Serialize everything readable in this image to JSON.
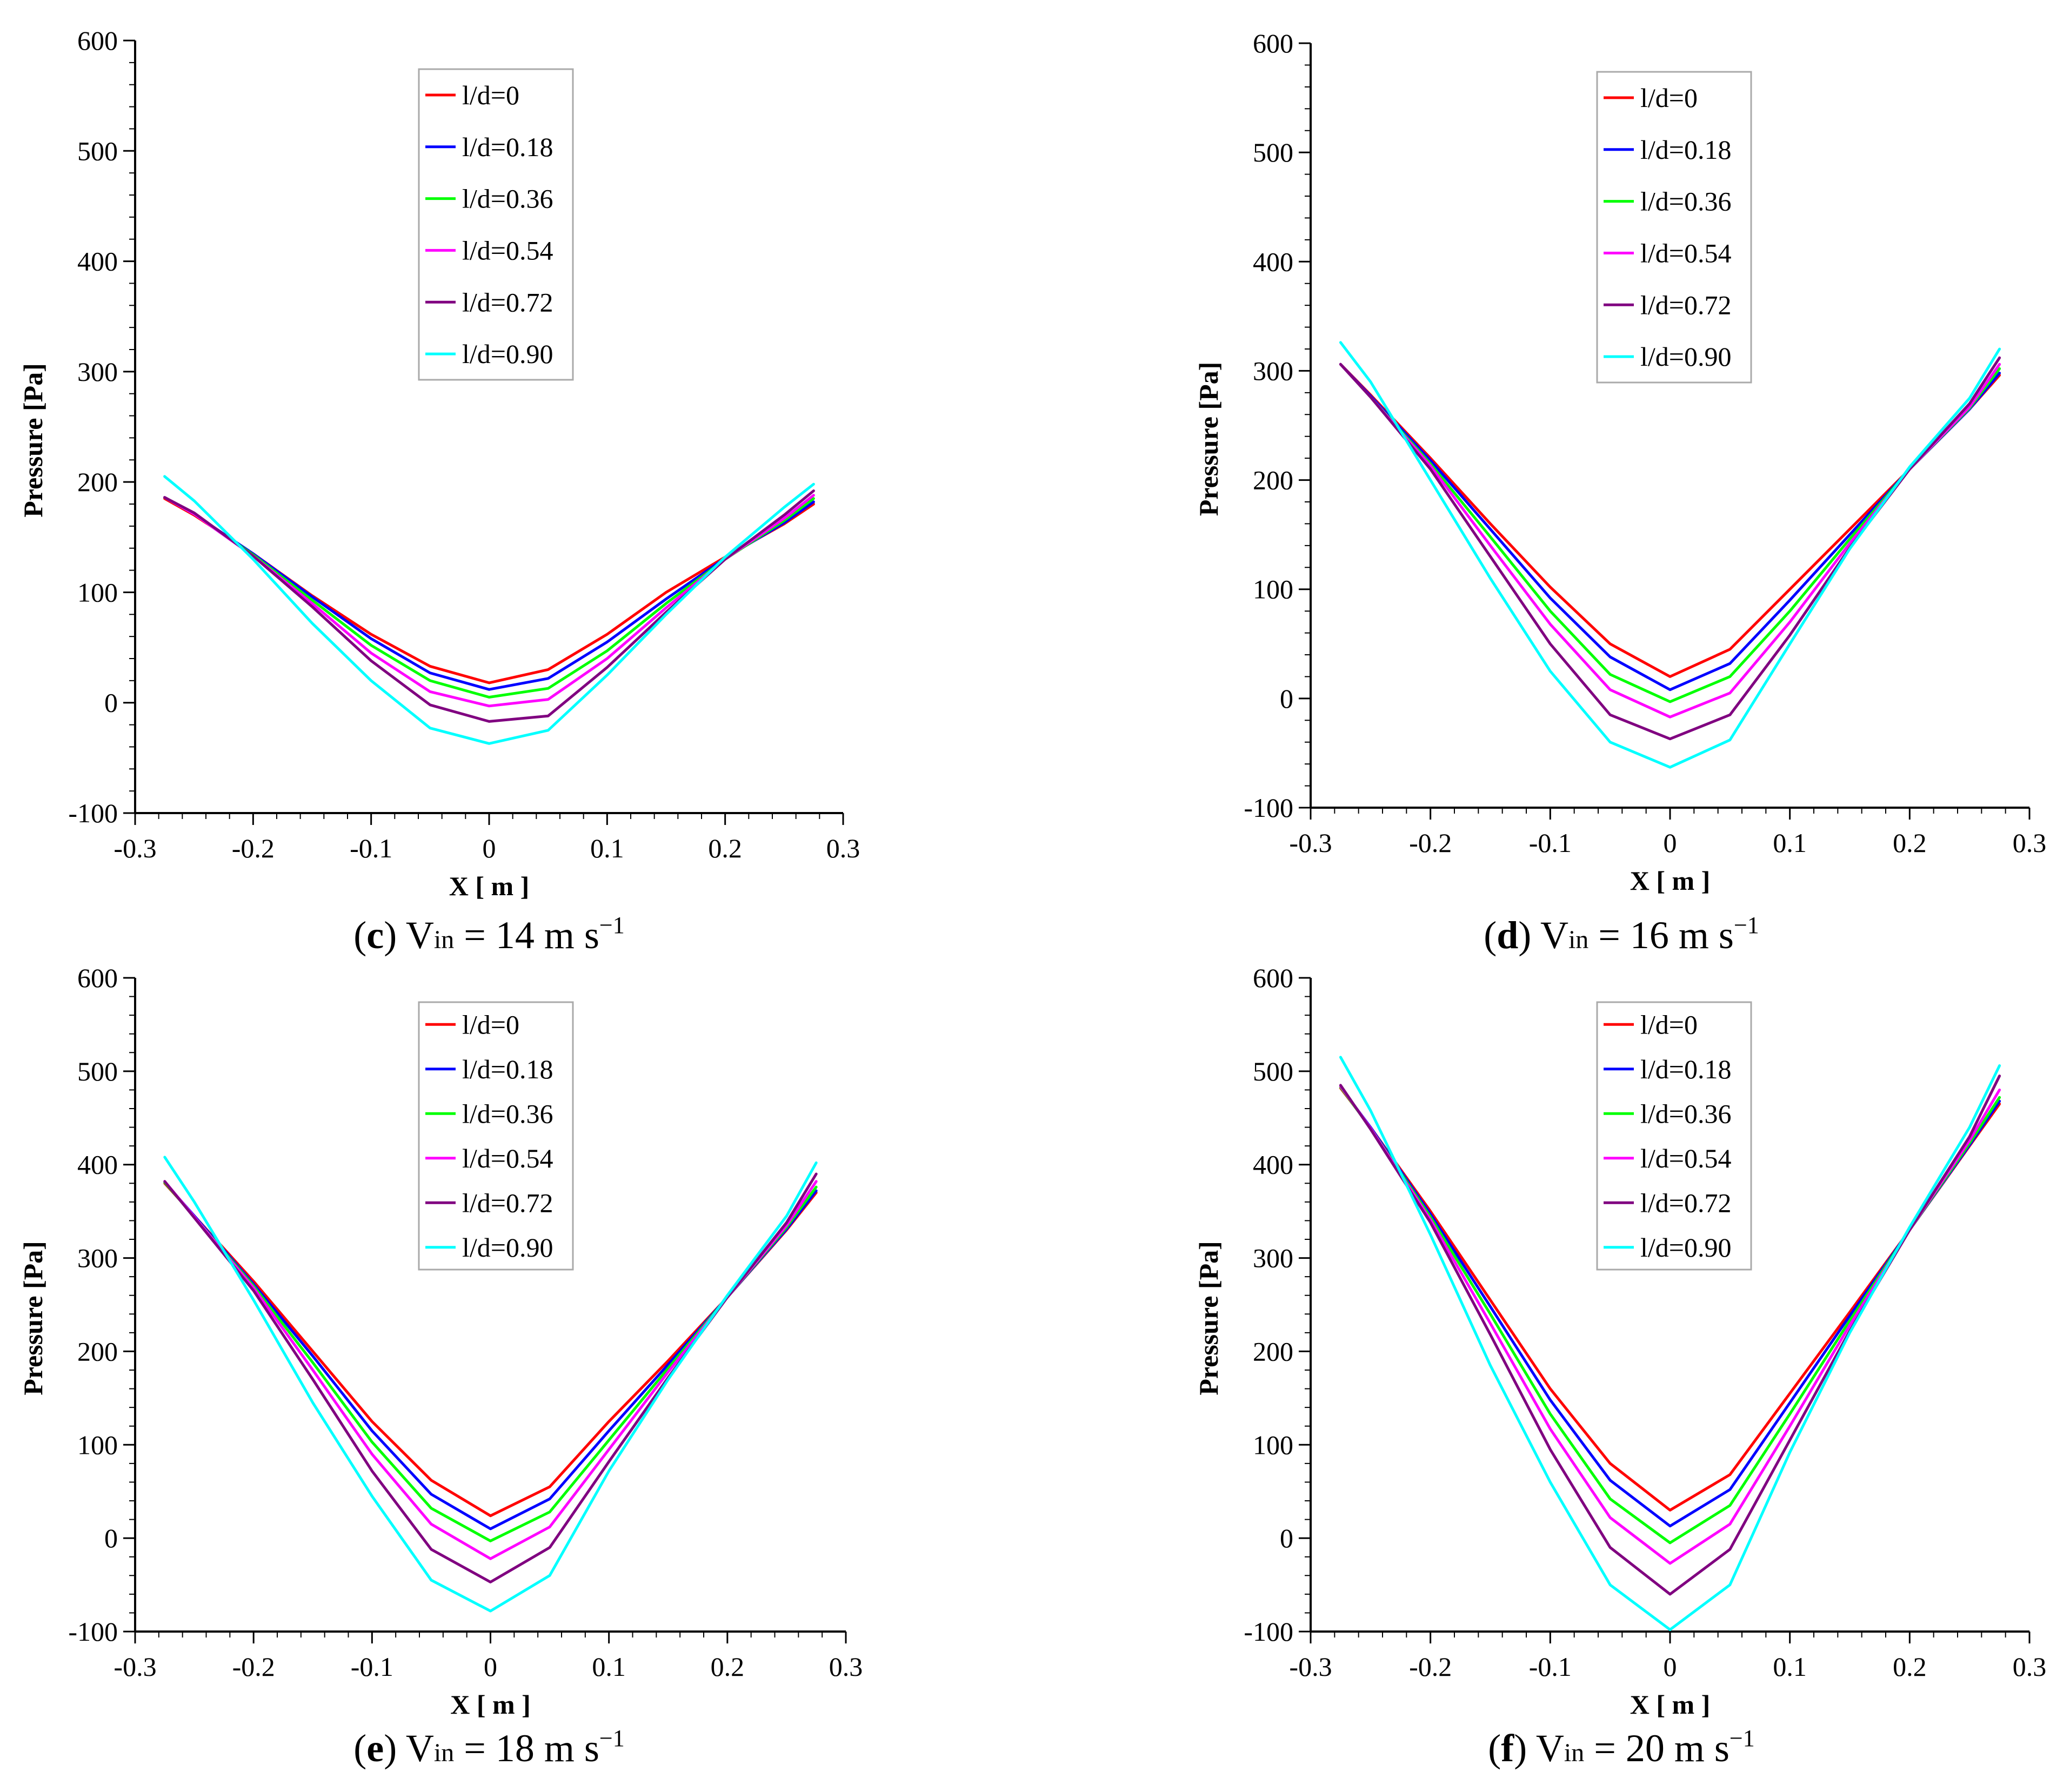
{
  "figure": {
    "legend_entries": [
      "l/d=0",
      "l/d=0.18",
      "l/d=0.36",
      "l/d=0.54",
      "l/d=0.72",
      "l/d=0.90"
    ],
    "series_colors": [
      "#ff0000",
      "#0000ff",
      "#00ff00",
      "#ff00ff",
      "#800080",
      "#00ffff"
    ]
  },
  "chart_data": [
    {
      "type": "line",
      "caption": {
        "letter": "c",
        "open": "(",
        "close": ")",
        "v": "V",
        "sub": "in",
        "rest": " = 14 m s",
        "sup": "−1"
      },
      "xlabel": "X [ m ]",
      "ylabel": "Pressure [Pa]",
      "xlim": [
        -0.3,
        0.3
      ],
      "ylim": [
        -100,
        600
      ],
      "xticks": [
        "-0.3",
        "-0.2",
        "-0.1",
        "0",
        "0.1",
        "0.2",
        "0.3"
      ],
      "yticks": [
        "-100",
        "0",
        "100",
        "200",
        "300",
        "400",
        "500",
        "600"
      ],
      "grid": false,
      "legend_position": "top-center",
      "x": [
        -0.275,
        -0.25,
        -0.2,
        -0.15,
        -0.1,
        -0.05,
        0,
        0.05,
        0.1,
        0.15,
        0.2,
        0.25,
        0.275
      ],
      "series": [
        {
          "name": "l/d=0",
          "values": [
            185,
            170,
            135,
            97,
            62,
            33,
            18,
            30,
            62,
            100,
            132,
            162,
            180
          ]
        },
        {
          "name": "l/d=0.18",
          "values": [
            186,
            171,
            135,
            96,
            58,
            27,
            12,
            22,
            55,
            94,
            131,
            163,
            182
          ]
        },
        {
          "name": "l/d=0.36",
          "values": [
            186,
            171,
            134,
            93,
            52,
            20,
            5,
            13,
            47,
            90,
            130,
            165,
            185
          ]
        },
        {
          "name": "l/d=0.54",
          "values": [
            186,
            171,
            133,
            90,
            45,
            10,
            -3,
            3,
            40,
            86,
            130,
            167,
            188
          ]
        },
        {
          "name": "l/d=0.72",
          "values": [
            186,
            172,
            133,
            87,
            38,
            -2,
            -17,
            -12,
            32,
            82,
            130,
            170,
            192
          ]
        },
        {
          "name": "l/d=0.90",
          "values": [
            205,
            183,
            130,
            72,
            20,
            -23,
            -37,
            -25,
            25,
            80,
            132,
            177,
            198
          ]
        }
      ]
    },
    {
      "type": "line",
      "caption": {
        "letter": "d",
        "open": "(",
        "close": ")",
        "v": "V",
        "sub": "in",
        "rest": " = 16 m s",
        "sup": "−1"
      },
      "xlabel": "X [ m ]",
      "ylabel": "Pressure [Pa]",
      "xlim": [
        -0.3,
        0.3
      ],
      "ylim": [
        -100,
        600
      ],
      "xticks": [
        "-0.3",
        "-0.2",
        "-0.1",
        "0",
        "0.1",
        "0.2",
        "0.3"
      ],
      "yticks": [
        "-100",
        "0",
        "100",
        "200",
        "300",
        "400",
        "500",
        "600"
      ],
      "grid": false,
      "legend_position": "top-center",
      "x": [
        -0.275,
        -0.25,
        -0.2,
        -0.15,
        -0.1,
        -0.05,
        0,
        0.05,
        0.1,
        0.15,
        0.2,
        0.25,
        0.275
      ],
      "series": [
        {
          "name": "l/d=0",
          "values": [
            306,
            278,
            220,
            160,
            102,
            50,
            20,
            45,
            100,
            155,
            210,
            265,
            296
          ]
        },
        {
          "name": "l/d=0.18",
          "values": [
            306,
            277,
            218,
            155,
            92,
            38,
            8,
            32,
            90,
            150,
            210,
            265,
            298
          ]
        },
        {
          "name": "l/d=0.36",
          "values": [
            306,
            276,
            215,
            148,
            80,
            22,
            -3,
            20,
            80,
            146,
            210,
            266,
            302
          ]
        },
        {
          "name": "l/d=0.54",
          "values": [
            306,
            276,
            213,
            140,
            68,
            8,
            -17,
            5,
            70,
            142,
            210,
            267,
            306
          ]
        },
        {
          "name": "l/d=0.72",
          "values": [
            306,
            276,
            210,
            130,
            50,
            -15,
            -37,
            -15,
            58,
            138,
            210,
            270,
            312
          ]
        },
        {
          "name": "l/d=0.90",
          "values": [
            326,
            290,
            200,
            110,
            25,
            -40,
            -63,
            -38,
            50,
            137,
            212,
            275,
            320
          ]
        }
      ]
    },
    {
      "type": "line",
      "caption": {
        "letter": "e",
        "open": "(",
        "close": ")",
        "v": "V",
        "sub": "in",
        "rest": " = 18 m s",
        "sup": "−1"
      },
      "xlabel": "X [ m ]",
      "ylabel": "Pressure [Pa]",
      "xlim": [
        -0.3,
        0.3
      ],
      "ylim": [
        -100,
        600
      ],
      "xticks": [
        "-0.3",
        "-0.2",
        "-0.1",
        "0",
        "0.1",
        "0.2",
        "0.3"
      ],
      "yticks": [
        "-100",
        "0",
        "100",
        "200",
        "300",
        "400",
        "500",
        "600"
      ],
      "grid": false,
      "legend_position": "top-center",
      "x": [
        -0.275,
        -0.25,
        -0.2,
        -0.15,
        -0.1,
        -0.05,
        0,
        0.05,
        0.1,
        0.15,
        0.2,
        0.25,
        0.275
      ],
      "series": [
        {
          "name": "l/d=0",
          "values": [
            380,
            345,
            275,
            200,
            125,
            62,
            24,
            55,
            125,
            190,
            258,
            330,
            370
          ]
        },
        {
          "name": "l/d=0.18",
          "values": [
            381,
            345,
            272,
            195,
            115,
            47,
            10,
            42,
            115,
            186,
            258,
            331,
            372
          ]
        },
        {
          "name": "l/d=0.36",
          "values": [
            381,
            344,
            270,
            188,
            103,
            32,
            -3,
            28,
            105,
            182,
            258,
            333,
            376
          ]
        },
        {
          "name": "l/d=0.54",
          "values": [
            382,
            344,
            268,
            180,
            90,
            15,
            -22,
            12,
            95,
            178,
            258,
            335,
            382
          ]
        },
        {
          "name": "l/d=0.72",
          "values": [
            382,
            343,
            265,
            170,
            72,
            -12,
            -47,
            -10,
            82,
            172,
            258,
            338,
            390
          ]
        },
        {
          "name": "l/d=0.90",
          "values": [
            408,
            360,
            255,
            145,
            45,
            -45,
            -78,
            -40,
            72,
            170,
            260,
            345,
            402
          ]
        }
      ]
    },
    {
      "type": "line",
      "caption": {
        "letter": "f",
        "open": "(",
        "close": ")",
        "v": "V",
        "sub": "in",
        "rest": " = 20 m s",
        "sup": "−1"
      },
      "xlabel": "X [ m ]",
      "ylabel": "Pressure [Pa]",
      "xlim": [
        -0.3,
        0.3
      ],
      "ylim": [
        -100,
        600
      ],
      "xticks": [
        "-0.3",
        "-0.2",
        "-0.1",
        "0",
        "0.1",
        "0.2",
        "0.3"
      ],
      "yticks": [
        "-100",
        "0",
        "100",
        "200",
        "300",
        "400",
        "500",
        "600"
      ],
      "grid": false,
      "legend_position": "top-center",
      "x": [
        -0.275,
        -0.25,
        -0.2,
        -0.15,
        -0.1,
        -0.05,
        0,
        0.05,
        0.1,
        0.15,
        0.2,
        0.25,
        0.275
      ],
      "series": [
        {
          "name": "l/d=0",
          "values": [
            482,
            440,
            350,
            255,
            160,
            80,
            30,
            68,
            155,
            242,
            330,
            420,
            465
          ]
        },
        {
          "name": "l/d=0.18",
          "values": [
            483,
            440,
            347,
            248,
            148,
            62,
            13,
            52,
            145,
            238,
            330,
            421,
            468
          ]
        },
        {
          "name": "l/d=0.36",
          "values": [
            483,
            439,
            344,
            240,
            133,
            42,
            -5,
            35,
            133,
            233,
            330,
            423,
            472
          ]
        },
        {
          "name": "l/d=0.54",
          "values": [
            484,
            439,
            341,
            230,
            117,
            22,
            -27,
            15,
            120,
            228,
            330,
            426,
            480
          ]
        },
        {
          "name": "l/d=0.72",
          "values": [
            485,
            438,
            338,
            218,
            95,
            -10,
            -60,
            -12,
            105,
            222,
            330,
            430,
            495
          ]
        },
        {
          "name": "l/d=0.90",
          "values": [
            515,
            458,
            325,
            185,
            60,
            -50,
            -98,
            -50,
            92,
            220,
            333,
            440,
            506
          ]
        }
      ]
    }
  ]
}
